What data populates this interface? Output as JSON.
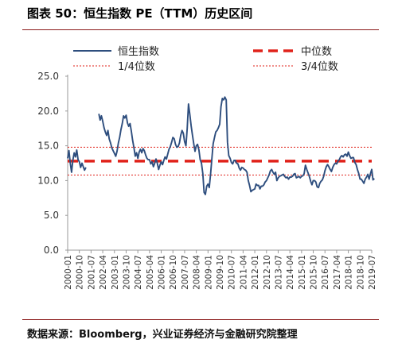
{
  "title": "图表 50：恒生指数 PE（TTM）历史区间",
  "source": "数据来源：Bloomberg，兴业证券经济与金融研究院整理",
  "colors": {
    "series": "#2e4e7e",
    "median": "#e0221a",
    "quartile": "#e0221a",
    "rule": "#8b1a1a"
  },
  "chart_data": {
    "type": "line",
    "title": "图表 50：恒生指数 PE（TTM）历史区间",
    "xlabel": "",
    "ylabel": "",
    "ylim": [
      0,
      25
    ],
    "yticks": [
      "0.0",
      "5.0",
      "10.0",
      "15.0",
      "20.0",
      "25.0"
    ],
    "xticks": [
      "2000-01",
      "2000-10",
      "2001-07",
      "2002-04",
      "2003-01",
      "2003-10",
      "2004-07",
      "2005-04",
      "2006-01",
      "2006-10",
      "2007-07",
      "2008-04",
      "2009-01",
      "2009-10",
      "2010-07",
      "2011-04",
      "2012-01",
      "2012-10",
      "2013-07",
      "2014-04",
      "2015-01",
      "2015-10",
      "2016-07",
      "2017-04",
      "2018-01",
      "2018-10",
      "2019-07"
    ],
    "grid": false,
    "legend": {
      "placement": "top",
      "entries": [
        {
          "label": "恒生指数",
          "style": "solid"
        },
        {
          "label": "中位数",
          "style": "dashed-thick"
        },
        {
          "label": "1/4位数",
          "style": "dotted"
        },
        {
          "label": "3/4位数",
          "style": "dotted"
        }
      ]
    },
    "reference_lines": [
      {
        "name": "中位数",
        "value": 12.8
      },
      {
        "name": "1/4位数",
        "value": 10.8
      },
      {
        "name": "3/4位数",
        "value": 14.8
      }
    ],
    "series": [
      {
        "name": "恒生指数",
        "points": [
          [
            "2000-01",
            13.2
          ],
          [
            "2000-02",
            14.3
          ],
          [
            "2000-03",
            12.5
          ],
          [
            "2000-04",
            11.2
          ],
          [
            "2000-05",
            12.9
          ],
          [
            "2000-06",
            14.0
          ],
          [
            "2000-07",
            13.4
          ],
          [
            "2000-08",
            14.4
          ],
          [
            "2000-09",
            13.0
          ],
          [
            "2000-10",
            12.7
          ],
          [
            "2000-11",
            11.9
          ],
          [
            "2000-12",
            12.5
          ],
          [
            "2001-01",
            12.0
          ],
          [
            "2001-02",
            11.5
          ],
          [
            "2001-03",
            11.9
          ],
          [
            "2002-01",
            19.6
          ],
          [
            "2002-02",
            18.7
          ],
          [
            "2002-03",
            19.3
          ],
          [
            "2002-04",
            18.5
          ],
          [
            "2002-05",
            17.6
          ],
          [
            "2002-06",
            17.0
          ],
          [
            "2002-07",
            16.5
          ],
          [
            "2002-08",
            17.2
          ],
          [
            "2002-09",
            16.0
          ],
          [
            "2002-10",
            15.4
          ],
          [
            "2002-11",
            14.7
          ],
          [
            "2002-12",
            14.3
          ],
          [
            "2003-01",
            13.9
          ],
          [
            "2003-02",
            13.5
          ],
          [
            "2003-03",
            14.2
          ],
          [
            "2003-04",
            15.4
          ],
          [
            "2003-05",
            16.2
          ],
          [
            "2003-06",
            17.3
          ],
          [
            "2003-07",
            18.2
          ],
          [
            "2003-08",
            19.3
          ],
          [
            "2003-09",
            19.0
          ],
          [
            "2003-10",
            19.4
          ],
          [
            "2003-11",
            18.3
          ],
          [
            "2003-12",
            17.8
          ],
          [
            "2004-01",
            18.2
          ],
          [
            "2004-02",
            17.1
          ],
          [
            "2004-03",
            15.8
          ],
          [
            "2004-04",
            14.7
          ],
          [
            "2004-05",
            13.5
          ],
          [
            "2004-06",
            14.0
          ],
          [
            "2004-07",
            13.2
          ],
          [
            "2004-08",
            14.1
          ],
          [
            "2004-09",
            14.5
          ],
          [
            "2004-10",
            14.0
          ],
          [
            "2004-11",
            14.6
          ],
          [
            "2004-12",
            14.3
          ],
          [
            "2005-01",
            13.7
          ],
          [
            "2005-02",
            13.2
          ],
          [
            "2005-03",
            13.0
          ],
          [
            "2005-04",
            13.0
          ],
          [
            "2005-05",
            12.4
          ],
          [
            "2005-06",
            12.7
          ],
          [
            "2005-07",
            12.0
          ],
          [
            "2005-08",
            12.5
          ],
          [
            "2005-09",
            13.1
          ],
          [
            "2005-10",
            12.5
          ],
          [
            "2005-11",
            11.6
          ],
          [
            "2005-12",
            12.2
          ],
          [
            "2006-01",
            12.7
          ],
          [
            "2006-02",
            12.3
          ],
          [
            "2006-03",
            12.9
          ],
          [
            "2006-04",
            13.4
          ],
          [
            "2006-05",
            13.1
          ],
          [
            "2006-06",
            13.8
          ],
          [
            "2006-07",
            14.5
          ],
          [
            "2006-08",
            14.9
          ],
          [
            "2006-09",
            15.5
          ],
          [
            "2006-10",
            16.2
          ],
          [
            "2006-11",
            16.0
          ],
          [
            "2006-12",
            15.2
          ],
          [
            "2007-01",
            14.8
          ],
          [
            "2007-02",
            14.9
          ],
          [
            "2007-03",
            15.4
          ],
          [
            "2007-04",
            16.5
          ],
          [
            "2007-05",
            17.2
          ],
          [
            "2007-06",
            16.8
          ],
          [
            "2007-07",
            15.6
          ],
          [
            "2007-08",
            15.0
          ],
          [
            "2007-09",
            17.5
          ],
          [
            "2007-10",
            21.0
          ],
          [
            "2007-11",
            19.5
          ],
          [
            "2007-12",
            17.9
          ],
          [
            "2008-01",
            16.6
          ],
          [
            "2008-02",
            15.3
          ],
          [
            "2008-03",
            14.2
          ],
          [
            "2008-04",
            15.0
          ],
          [
            "2008-05",
            15.2
          ],
          [
            "2008-06",
            14.4
          ],
          [
            "2008-07",
            13.0
          ],
          [
            "2008-08",
            12.5
          ],
          [
            "2008-09",
            11.0
          ],
          [
            "2008-10",
            8.3
          ],
          [
            "2008-11",
            8.0
          ],
          [
            "2008-12",
            9.2
          ],
          [
            "2009-01",
            9.5
          ],
          [
            "2009-02",
            9.0
          ],
          [
            "2009-03",
            11.0
          ],
          [
            "2009-04",
            13.2
          ],
          [
            "2009-05",
            15.3
          ],
          [
            "2009-06",
            16.2
          ],
          [
            "2009-07",
            17.0
          ],
          [
            "2009-08",
            17.2
          ],
          [
            "2009-09",
            17.6
          ],
          [
            "2009-10",
            18.1
          ],
          [
            "2009-11",
            20.6
          ],
          [
            "2009-12",
            21.8
          ],
          [
            "2010-01",
            21.6
          ],
          [
            "2010-02",
            22.0
          ],
          [
            "2010-03",
            21.6
          ],
          [
            "2010-04",
            15.5
          ],
          [
            "2010-05",
            13.6
          ],
          [
            "2010-06",
            13.2
          ],
          [
            "2010-07",
            12.6
          ],
          [
            "2010-08",
            12.4
          ],
          [
            "2010-09",
            12.9
          ],
          [
            "2010-10",
            12.9
          ],
          [
            "2010-11",
            12.5
          ],
          [
            "2010-12",
            12.4
          ],
          [
            "2011-01",
            11.8
          ],
          [
            "2011-02",
            11.5
          ],
          [
            "2011-03",
            11.9
          ],
          [
            "2011-04",
            11.8
          ],
          [
            "2011-05",
            11.6
          ],
          [
            "2011-06",
            11.5
          ],
          [
            "2011-07",
            11.2
          ],
          [
            "2011-08",
            10.0
          ],
          [
            "2011-09",
            9.3
          ],
          [
            "2011-10",
            8.4
          ],
          [
            "2011-11",
            8.6
          ],
          [
            "2011-12",
            8.7
          ],
          [
            "2012-01",
            8.8
          ],
          [
            "2012-02",
            9.5
          ],
          [
            "2012-03",
            9.3
          ],
          [
            "2012-04",
            9.3
          ],
          [
            "2012-05",
            8.8
          ],
          [
            "2012-06",
            9.2
          ],
          [
            "2012-07",
            9.2
          ],
          [
            "2012-08",
            9.4
          ],
          [
            "2012-09",
            9.8
          ],
          [
            "2012-10",
            10.0
          ],
          [
            "2012-11",
            10.4
          ],
          [
            "2012-12",
            10.8
          ],
          [
            "2013-01",
            11.4
          ],
          [
            "2013-02",
            11.6
          ],
          [
            "2013-03",
            11.2
          ],
          [
            "2013-04",
            10.9
          ],
          [
            "2013-05",
            11.2
          ],
          [
            "2013-06",
            10.0
          ],
          [
            "2013-07",
            10.4
          ],
          [
            "2013-08",
            10.6
          ],
          [
            "2013-09",
            10.7
          ],
          [
            "2013-10",
            10.8
          ],
          [
            "2013-11",
            10.9
          ],
          [
            "2013-12",
            10.6
          ],
          [
            "2014-01",
            10.4
          ],
          [
            "2014-02",
            10.5
          ],
          [
            "2014-03",
            10.2
          ],
          [
            "2014-04",
            10.5
          ],
          [
            "2014-05",
            10.5
          ],
          [
            "2014-06",
            10.6
          ],
          [
            "2014-07",
            10.9
          ],
          [
            "2014-08",
            11.0
          ],
          [
            "2014-09",
            10.4
          ],
          [
            "2014-10",
            10.5
          ],
          [
            "2014-11",
            10.6
          ],
          [
            "2014-12",
            10.4
          ],
          [
            "2015-01",
            10.6
          ],
          [
            "2015-02",
            10.7
          ],
          [
            "2015-03",
            11.0
          ],
          [
            "2015-04",
            12.2
          ],
          [
            "2015-05",
            11.6
          ],
          [
            "2015-06",
            11.1
          ],
          [
            "2015-07",
            10.6
          ],
          [
            "2015-08",
            9.9
          ],
          [
            "2015-09",
            9.4
          ],
          [
            "2015-10",
            10.0
          ],
          [
            "2015-11",
            10.0
          ],
          [
            "2015-12",
            9.8
          ],
          [
            "2016-01",
            9.1
          ],
          [
            "2016-02",
            9.0
          ],
          [
            "2016-03",
            9.6
          ],
          [
            "2016-04",
            9.9
          ],
          [
            "2016-05",
            10.1
          ],
          [
            "2016-06",
            10.6
          ],
          [
            "2016-07",
            11.4
          ],
          [
            "2016-08",
            12.0
          ],
          [
            "2016-09",
            12.3
          ],
          [
            "2016-10",
            12.0
          ],
          [
            "2016-11",
            11.6
          ],
          [
            "2016-12",
            11.3
          ],
          [
            "2017-01",
            11.9
          ],
          [
            "2017-02",
            12.3
          ],
          [
            "2017-03",
            12.5
          ],
          [
            "2017-04",
            12.4
          ],
          [
            "2017-05",
            12.8
          ],
          [
            "2017-06",
            13.0
          ],
          [
            "2017-07",
            13.4
          ],
          [
            "2017-08",
            13.6
          ],
          [
            "2017-09",
            13.4
          ],
          [
            "2017-10",
            13.7
          ],
          [
            "2017-11",
            13.8
          ],
          [
            "2017-12",
            13.5
          ],
          [
            "2018-01",
            14.1
          ],
          [
            "2018-02",
            13.6
          ],
          [
            "2018-03",
            13.2
          ],
          [
            "2018-04",
            13.3
          ],
          [
            "2018-05",
            13.3
          ],
          [
            "2018-06",
            12.6
          ],
          [
            "2018-07",
            12.3
          ],
          [
            "2018-08",
            11.6
          ],
          [
            "2018-09",
            11.0
          ],
          [
            "2018-10",
            10.2
          ],
          [
            "2018-11",
            10.2
          ],
          [
            "2018-12",
            9.9
          ],
          [
            "2019-01",
            9.6
          ],
          [
            "2019-02",
            10.2
          ],
          [
            "2019-03",
            10.5
          ],
          [
            "2019-04",
            10.9
          ],
          [
            "2019-05",
            10.2
          ],
          [
            "2019-06",
            11.0
          ],
          [
            "2019-07",
            11.6
          ],
          [
            "2019-08",
            10.1
          ],
          [
            "2019-09",
            10.3
          ]
        ]
      }
    ]
  }
}
